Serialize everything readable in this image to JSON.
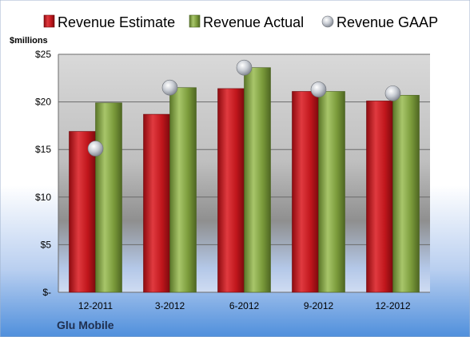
{
  "chart_data": {
    "type": "bar",
    "categories": [
      "12-2011",
      "3-2012",
      "6-2012",
      "9-2012",
      "12-2012"
    ],
    "series": [
      {
        "name": "Revenue Estimate",
        "values": [
          16.9,
          18.7,
          21.4,
          21.1,
          20.1
        ],
        "color": "#c0161c",
        "kind": "bar"
      },
      {
        "name": "Revenue Actual",
        "values": [
          19.9,
          21.5,
          23.6,
          21.1,
          20.7
        ],
        "color": "#7a9a3a",
        "kind": "bar"
      },
      {
        "name": "Revenue GAAP",
        "values": [
          15.1,
          21.5,
          23.6,
          21.3,
          20.9
        ],
        "color": "#b8bcc4",
        "kind": "marker"
      }
    ],
    "ylabel": "$millions",
    "yticks": [
      "$-",
      "$5",
      "$10",
      "$15",
      "$20",
      "$25"
    ],
    "ylim": [
      0,
      25
    ],
    "grid": true,
    "legend_position": "top",
    "company": "Glu Mobile"
  }
}
